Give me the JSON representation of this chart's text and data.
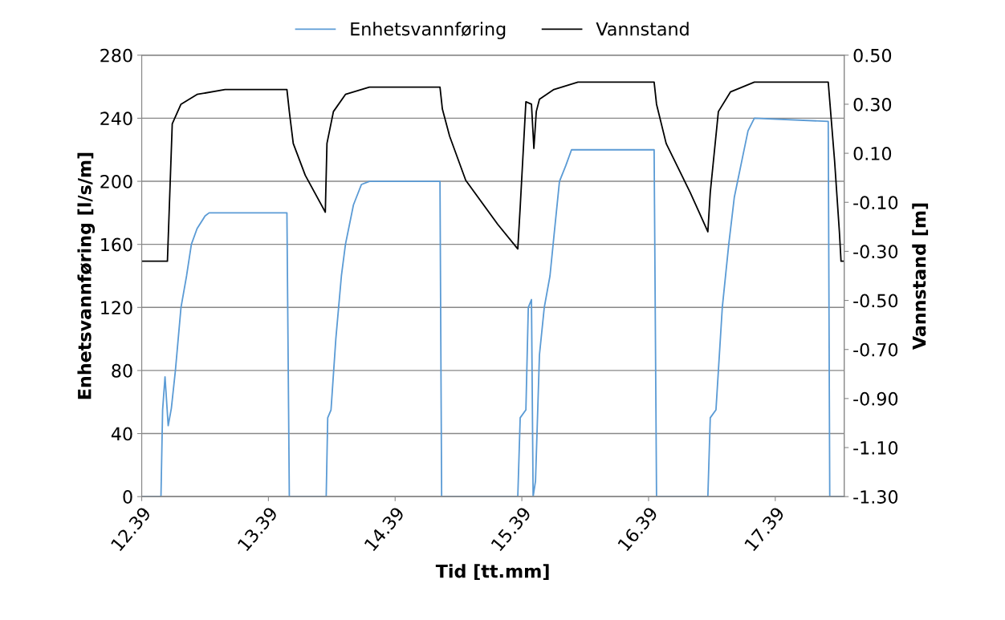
{
  "chart_data": {
    "type": "line",
    "xlabel": "Tid [tt.mm]",
    "ylabel": "Enhetsvannføring [l/s/m]",
    "y2label": "Vannstand [m]",
    "xlim": [
      12.39,
      17.934
    ],
    "xticks": [
      12.39,
      13.39,
      14.39,
      15.39,
      16.39,
      17.39
    ],
    "ylim": [
      0,
      280
    ],
    "yticks": [
      0,
      40,
      80,
      120,
      160,
      200,
      240,
      280
    ],
    "y2lim": [
      -1.3,
      0.5
    ],
    "y2ticks": [
      {
        "value": -1.3,
        "label": "-1.30"
      },
      {
        "value": -1.1,
        "label": "-1.10"
      },
      {
        "value": -0.9,
        "label": "-0.90"
      },
      {
        "value": -0.7,
        "label": "-0.70"
      },
      {
        "value": -0.5,
        "label": "-0.50"
      },
      {
        "value": -0.3,
        "label": "-0.30"
      },
      {
        "value": -0.1,
        "label": "-0.10"
      },
      {
        "value": 0.1,
        "label": "0.10"
      },
      {
        "value": 0.3,
        "label": "0.30"
      },
      {
        "value": 0.5,
        "label": "0.50"
      }
    ],
    "grid": "y",
    "legend": "top",
    "marker": "none",
    "line_style": "solid",
    "series": [
      {
        "name": "Enhetsvannføring",
        "color": "#5b9bd5",
        "x": [
          12.39,
          12.542,
          12.555,
          12.574,
          12.599,
          12.624,
          12.656,
          12.7,
          12.744,
          12.782,
          12.827,
          12.89,
          12.922,
          13.536,
          13.555,
          13.846,
          13.858,
          13.884,
          13.922,
          13.966,
          13.998,
          14.061,
          14.124,
          14.187,
          14.744,
          14.757,
          15.358,
          15.377,
          15.422,
          15.441,
          15.466,
          15.479,
          15.498,
          15.529,
          15.567,
          15.612,
          15.643,
          15.687,
          15.737,
          15.782,
          16.434,
          16.453,
          16.858,
          16.877,
          16.922,
          16.972,
          17.023,
          17.067,
          17.131,
          17.175,
          17.225,
          17.808,
          17.82,
          17.934
        ],
        "values": [
          0,
          0,
          55,
          76,
          45,
          56,
          80,
          120,
          140,
          160,
          170,
          178,
          180,
          180,
          0,
          0,
          50,
          55,
          100,
          140,
          160,
          185,
          198,
          200,
          200,
          0,
          0,
          50,
          55,
          120,
          125,
          0,
          10,
          90,
          120,
          140,
          165,
          200,
          210,
          220,
          220,
          0,
          0,
          50,
          55,
          120,
          160,
          190,
          215,
          232,
          240,
          238,
          0,
          0
        ]
      },
      {
        "name": "Vannstand",
        "color": "#000000",
        "axis": "y2",
        "x": [
          12.39,
          12.593,
          12.612,
          12.631,
          12.7,
          12.827,
          13.048,
          13.536,
          13.555,
          13.586,
          13.681,
          13.839,
          13.852,
          13.903,
          13.998,
          14.187,
          14.744,
          14.763,
          14.82,
          14.947,
          15.2,
          15.358,
          15.377,
          15.422,
          15.466,
          15.485,
          15.504,
          15.529,
          15.643,
          15.833,
          16.434,
          16.453,
          16.529,
          16.719,
          16.858,
          16.877,
          16.941,
          17.036,
          17.225,
          17.808,
          17.858,
          17.896,
          17.909,
          17.934
        ],
        "values": [
          -0.34,
          -0.34,
          -0.06,
          0.22,
          0.3,
          0.34,
          0.36,
          0.36,
          0.27,
          0.14,
          0.01,
          -0.14,
          0.14,
          0.27,
          0.34,
          0.37,
          0.37,
          0.28,
          0.17,
          -0.01,
          -0.19,
          -0.29,
          -0.12,
          0.31,
          0.3,
          0.12,
          0.27,
          0.32,
          0.36,
          0.39,
          0.39,
          0.3,
          0.14,
          -0.06,
          -0.22,
          -0.06,
          0.27,
          0.35,
          0.39,
          0.39,
          0.07,
          -0.22,
          -0.34,
          -0.34
        ]
      }
    ]
  }
}
